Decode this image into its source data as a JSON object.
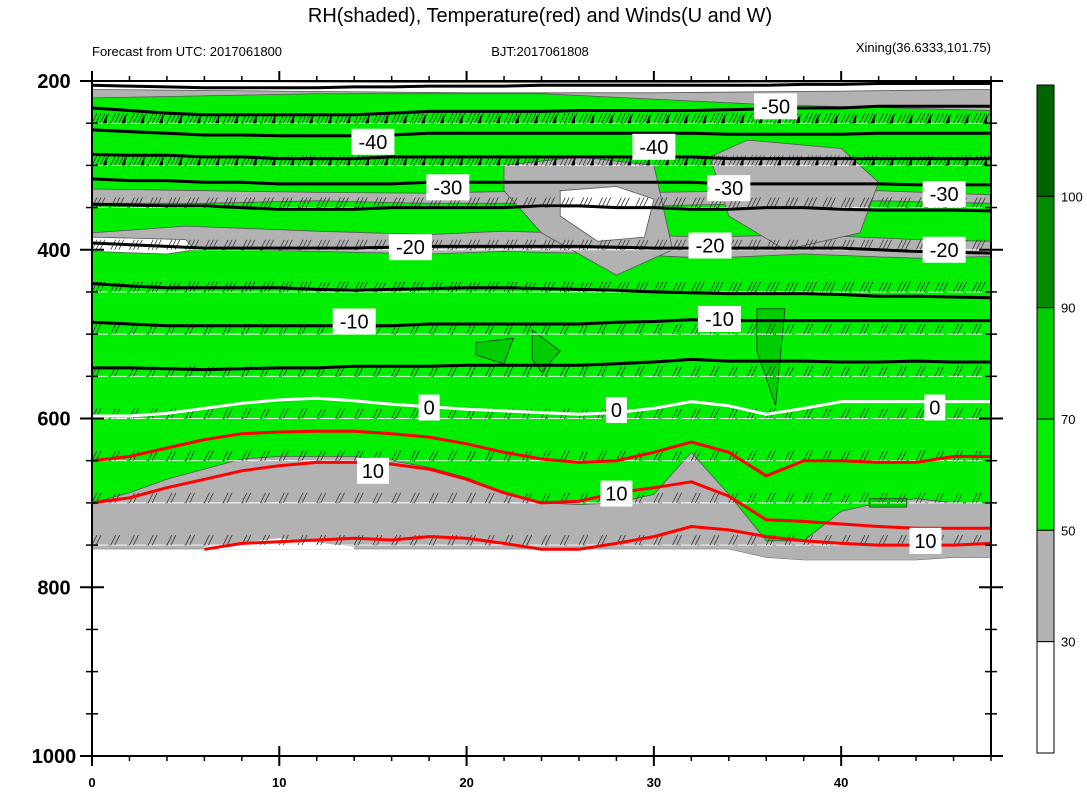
{
  "title": "RH(shaded), Temperature(red) and Winds(U and W)",
  "subtitle_left": "Forecast from UTC: 2017061800",
  "subtitle_center": "BJT:2017061808",
  "subtitle_right": "Xining(36.6333,101.75)",
  "chart_data": {
    "type": "heatmap",
    "description_keys": [
      "rh_fill",
      "temperature_contours",
      "wind_barbs"
    ],
    "x": {
      "range": [
        0,
        48
      ],
      "major_ticks": [
        0,
        10,
        20,
        30,
        40
      ],
      "minor_tick_step": 2,
      "tick_labels": [
        "0",
        "10",
        "20",
        "30",
        "40"
      ]
    },
    "y": {
      "range": [
        200,
        1000
      ],
      "major_ticks": [
        200,
        400,
        600,
        800,
        1000
      ],
      "minor_ticks": [
        250,
        300,
        350,
        450,
        500,
        550,
        650,
        700,
        750,
        850,
        900,
        950
      ],
      "tick_labels": [
        "200",
        "400",
        "600",
        "800",
        "1000"
      ],
      "reversed": true
    },
    "colorbar": {
      "levels": [
        30,
        50,
        70,
        90,
        100
      ],
      "labels": [
        "30",
        "50",
        "70",
        "90",
        "100"
      ],
      "colors": [
        "#ffffff",
        "#b2b2b2",
        "#00ee00",
        "#00cd00",
        "#008b00",
        "#006400"
      ]
    },
    "rh_fill": {
      "times": [
        0,
        2,
        4,
        6,
        8,
        10,
        12,
        14,
        16,
        18,
        20,
        22,
        24,
        26,
        28,
        30,
        32,
        34,
        36,
        38,
        40,
        42,
        44,
        46,
        48
      ],
      "surface_pressure": [
        755,
        755,
        755,
        755,
        755,
        755,
        755,
        755,
        755,
        755,
        755,
        755,
        755,
        755,
        755,
        755,
        755,
        755,
        765,
        768,
        768,
        768,
        768,
        765,
        765
      ],
      "gray_green_boundary": [
        700,
        688,
        672,
        660,
        648,
        645,
        645,
        645,
        650,
        658,
        670,
        688,
        700,
        702,
        700,
        690,
        640,
        690,
        745,
        745,
        710,
        700,
        695,
        700,
        700
      ],
      "rh90_patches": [
        {
          "t": [
            20.5,
            22.5,
            22.0,
            20.5
          ],
          "p": [
            510,
            505,
            535,
            525
          ]
        },
        {
          "t": [
            23.5,
            25.0,
            24.0,
            23.5
          ],
          "p": [
            495,
            520,
            545,
            530
          ]
        },
        {
          "t": [
            35.5,
            37.0,
            36.5,
            35.5
          ],
          "p": [
            470,
            470,
            585,
            520
          ]
        },
        {
          "t": [
            41.5,
            43.5,
            43.5,
            41.5
          ],
          "p": [
            695,
            695,
            705,
            705
          ]
        }
      ]
    },
    "temperature_contours": {
      "times": [
        0,
        2,
        4,
        6,
        8,
        10,
        12,
        14,
        16,
        18,
        20,
        22,
        24,
        26,
        28,
        30,
        32,
        34,
        36,
        38,
        40,
        42,
        44,
        46,
        48
      ],
      "lines": [
        {
          "level": -50,
          "color": "#000000",
          "p": [
            232,
            235,
            238,
            240,
            240,
            240,
            240,
            240,
            238,
            236,
            236,
            236,
            236,
            235,
            235,
            235,
            235,
            234,
            233,
            232,
            232,
            230,
            230,
            230,
            230
          ]
        },
        {
          "level": -40,
          "color": "#000000",
          "p": [
            287,
            288,
            288,
            290,
            290,
            292,
            292,
            292,
            290,
            290,
            290,
            290,
            290,
            290,
            290,
            290,
            290,
            292,
            292,
            292,
            292,
            292,
            292,
            292,
            292
          ]
        },
        {
          "level": -30,
          "color": "#000000",
          "p": [
            346,
            347,
            348,
            348,
            350,
            352,
            352,
            352,
            350,
            350,
            350,
            350,
            348,
            348,
            350,
            350,
            352,
            352,
            350,
            350,
            352,
            353,
            353,
            353,
            354
          ]
        },
        {
          "level": -20,
          "color": "#000000",
          "p": [
            440,
            443,
            445,
            445,
            445,
            445,
            447,
            448,
            447,
            446,
            445,
            445,
            446,
            447,
            448,
            450,
            451,
            452,
            452,
            452,
            453,
            455,
            455,
            456,
            457
          ]
        },
        {
          "level": -10,
          "color": "#000000",
          "p": [
            540,
            540,
            541,
            542,
            541,
            540,
            540,
            538,
            538,
            538,
            537,
            537,
            537,
            537,
            535,
            533,
            530,
            532,
            532,
            532,
            533,
            533,
            532,
            533,
            533
          ]
        },
        {
          "level": 0,
          "color": "#ffffff",
          "p": [
            597,
            597,
            594,
            588,
            582,
            578,
            576,
            579,
            583,
            586,
            589,
            591,
            593,
            595,
            593,
            588,
            580,
            585,
            595,
            588,
            580,
            580,
            580,
            580,
            580
          ]
        },
        {
          "level": 10,
          "color": "#ff0000",
          "p": [
            700,
            694,
            682,
            672,
            662,
            656,
            652,
            652,
            654,
            660,
            672,
            688,
            700,
            698,
            688,
            682,
            675,
            692,
            720,
            722,
            725,
            728,
            730,
            730,
            730
          ]
        }
      ]
    },
    "temperature_labels": [
      {
        "text": "-50",
        "t": 36.5,
        "p": 230
      },
      {
        "text": "-40",
        "t": 15,
        "p": 272
      },
      {
        "text": "-40",
        "t": 30,
        "p": 278
      },
      {
        "text": "-30",
        "t": 19,
        "p": 326
      },
      {
        "text": "-30",
        "t": 34,
        "p": 327
      },
      {
        "text": "-30",
        "t": 45.5,
        "p": 334
      },
      {
        "text": "-20",
        "t": 17,
        "p": 397
      },
      {
        "text": "-20",
        "t": 33,
        "p": 395
      },
      {
        "text": "-20",
        "t": 45.5,
        "p": 400
      },
      {
        "text": "-10",
        "t": 14,
        "p": 485
      },
      {
        "text": "-10",
        "t": 33.5,
        "p": 482
      },
      {
        "text": "0",
        "t": 18,
        "p": 587
      },
      {
        "text": "0",
        "t": 28,
        "p": 590
      },
      {
        "text": "0",
        "t": 45,
        "p": 587
      },
      {
        "text": "10",
        "t": 15,
        "p": 662
      },
      {
        "text": "10",
        "t": 28,
        "p": 689
      },
      {
        "text": "10",
        "t": 44.5,
        "p": 745
      }
    ],
    "wind_barbs": {
      "levels": [
        200,
        250,
        300,
        350,
        400,
        450,
        500,
        550,
        600,
        650,
        700,
        750
      ],
      "times": [
        0,
        1,
        2,
        3,
        4,
        5,
        6,
        7,
        8,
        9,
        10,
        11,
        12,
        13,
        14,
        15,
        16,
        17,
        18,
        19,
        20,
        21,
        22,
        23,
        24,
        25,
        26,
        27,
        28,
        29,
        30,
        31,
        32,
        33,
        34,
        35,
        36,
        37,
        38,
        39,
        40,
        41,
        42,
        43,
        44,
        45,
        46,
        47,
        48
      ]
    }
  }
}
